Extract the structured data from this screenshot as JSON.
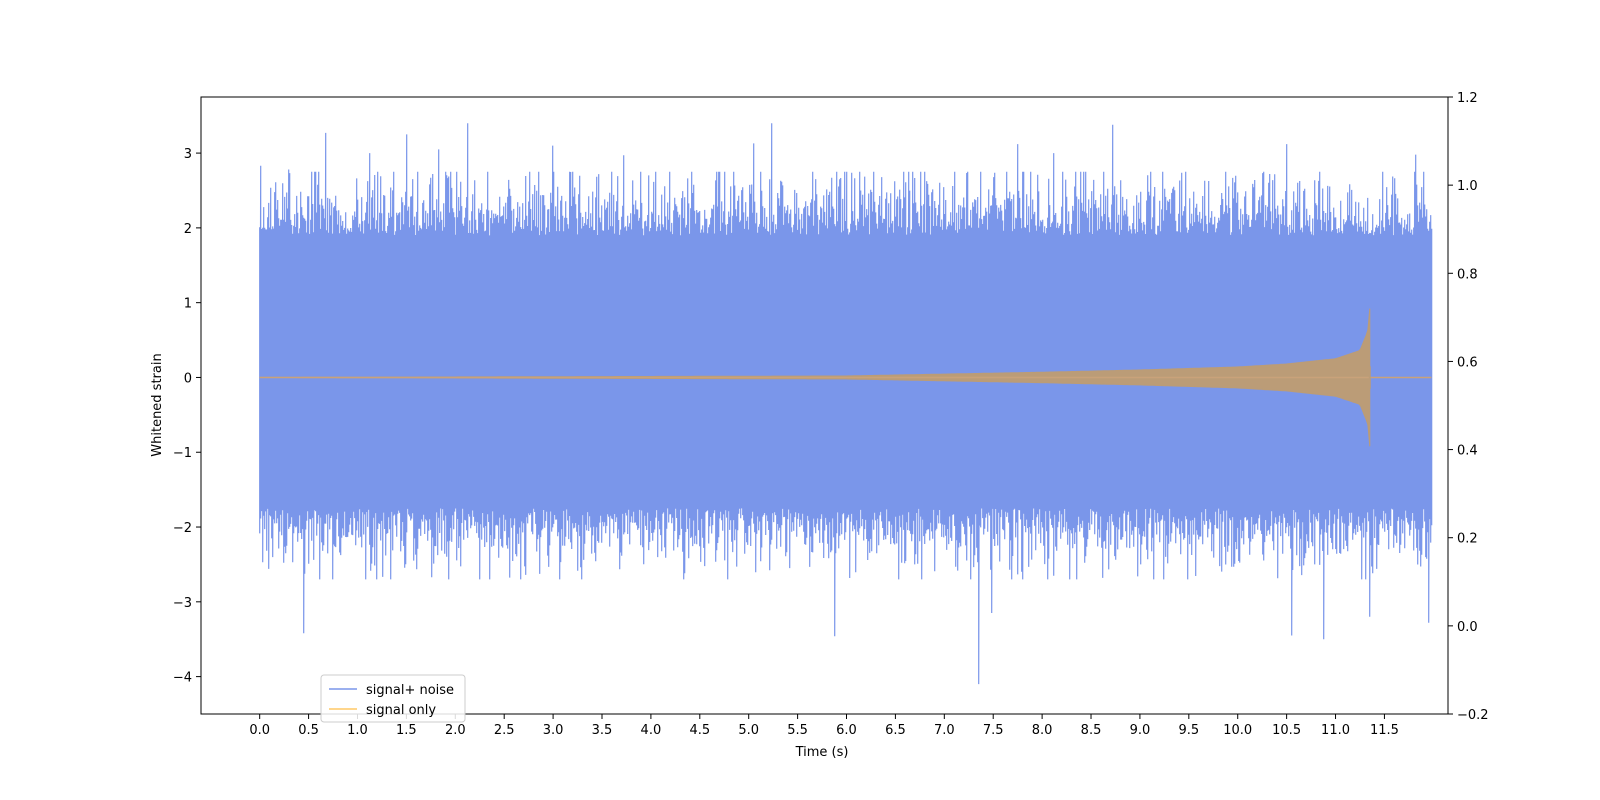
{
  "chart_data": {
    "type": "line",
    "title": "",
    "xlabel": "Time (s)",
    "ylabel": "Whitened strain",
    "y2label": "",
    "xlim": [
      -0.6,
      12.15
    ],
    "ylim": [
      -4.5,
      3.75
    ],
    "y2lim": [
      -0.2,
      1.2
    ],
    "x_ticks": [
      0.0,
      0.5,
      1.0,
      1.5,
      2.0,
      2.5,
      3.0,
      3.5,
      4.0,
      4.5,
      5.0,
      5.5,
      6.0,
      6.5,
      7.0,
      7.5,
      8.0,
      8.5,
      9.0,
      9.5,
      10.0,
      10.5,
      11.0,
      11.5
    ],
    "x_tick_labels": [
      "0.0",
      "0.5",
      "1.0",
      "1.5",
      "2.0",
      "2.5",
      "3.0",
      "3.5",
      "4.0",
      "4.5",
      "5.0",
      "5.5",
      "6.0",
      "6.5",
      "7.0",
      "7.5",
      "8.0",
      "8.5",
      "9.0",
      "9.5",
      "10.0",
      "10.5",
      "11.0",
      "11.5"
    ],
    "y_ticks": [
      3,
      2,
      1,
      0,
      -1,
      -2,
      -3,
      -4
    ],
    "y_tick_labels": [
      "3",
      "2",
      "1",
      "0",
      "−1",
      "−2",
      "−3",
      "−4"
    ],
    "y2_ticks": [
      1.2,
      1.0,
      0.8,
      0.6,
      0.4,
      0.2,
      0.0,
      -0.2
    ],
    "y2_tick_labels": [
      "1.2",
      "1.0",
      "0.8",
      "0.6",
      "0.4",
      "0.2",
      "0.0",
      "−0.2"
    ],
    "grid": false,
    "legend_position": "lower-left",
    "series": [
      {
        "name": "signal+ noise",
        "color": "#4169e1",
        "description_kind": "noise",
        "x_start": 0.0,
        "x_end": 11.98,
        "typical_envelope": [
          -2.2,
          2.5
        ],
        "peaks": [
          {
            "x": 0.01,
            "y": 2.83
          },
          {
            "x": 0.3,
            "y": 2.78
          },
          {
            "x": 0.45,
            "y": -3.42
          },
          {
            "x": 0.67,
            "y": 3.27
          },
          {
            "x": 1.12,
            "y": 3.0
          },
          {
            "x": 1.5,
            "y": 3.25
          },
          {
            "x": 1.83,
            "y": 3.05
          },
          {
            "x": 2.13,
            "y": 3.4
          },
          {
            "x": 3.0,
            "y": 3.1
          },
          {
            "x": 3.72,
            "y": 2.97
          },
          {
            "x": 5.05,
            "y": 3.13
          },
          {
            "x": 5.23,
            "y": 3.4
          },
          {
            "x": 5.88,
            "y": -3.46
          },
          {
            "x": 7.35,
            "y": -4.1
          },
          {
            "x": 7.48,
            "y": -3.15
          },
          {
            "x": 7.75,
            "y": 3.12
          },
          {
            "x": 8.72,
            "y": 3.38
          },
          {
            "x": 8.12,
            "y": 3.0
          },
          {
            "x": 10.5,
            "y": 3.12
          },
          {
            "x": 10.55,
            "y": -3.45
          },
          {
            "x": 10.88,
            "y": -3.5
          },
          {
            "x": 11.35,
            "y": -3.2
          },
          {
            "x": 11.82,
            "y": 2.98
          },
          {
            "x": 11.95,
            "y": -3.28
          }
        ]
      },
      {
        "name": "signal only",
        "color": "#ffa500",
        "description_kind": "chirp",
        "x_start": 0.0,
        "x_end": 11.98,
        "merger_x": 11.35,
        "peak_amplitude": 0.92,
        "amplitude_at_x": [
          {
            "x": 0.0,
            "a": 0.0
          },
          {
            "x": 6.0,
            "a": 0.02
          },
          {
            "x": 8.0,
            "a": 0.07
          },
          {
            "x": 9.0,
            "a": 0.1
          },
          {
            "x": 10.0,
            "a": 0.14
          },
          {
            "x": 10.5,
            "a": 0.18
          },
          {
            "x": 11.0,
            "a": 0.25
          },
          {
            "x": 11.25,
            "a": 0.36
          },
          {
            "x": 11.33,
            "a": 0.62
          },
          {
            "x": 11.35,
            "a": 0.92
          }
        ]
      }
    ]
  }
}
